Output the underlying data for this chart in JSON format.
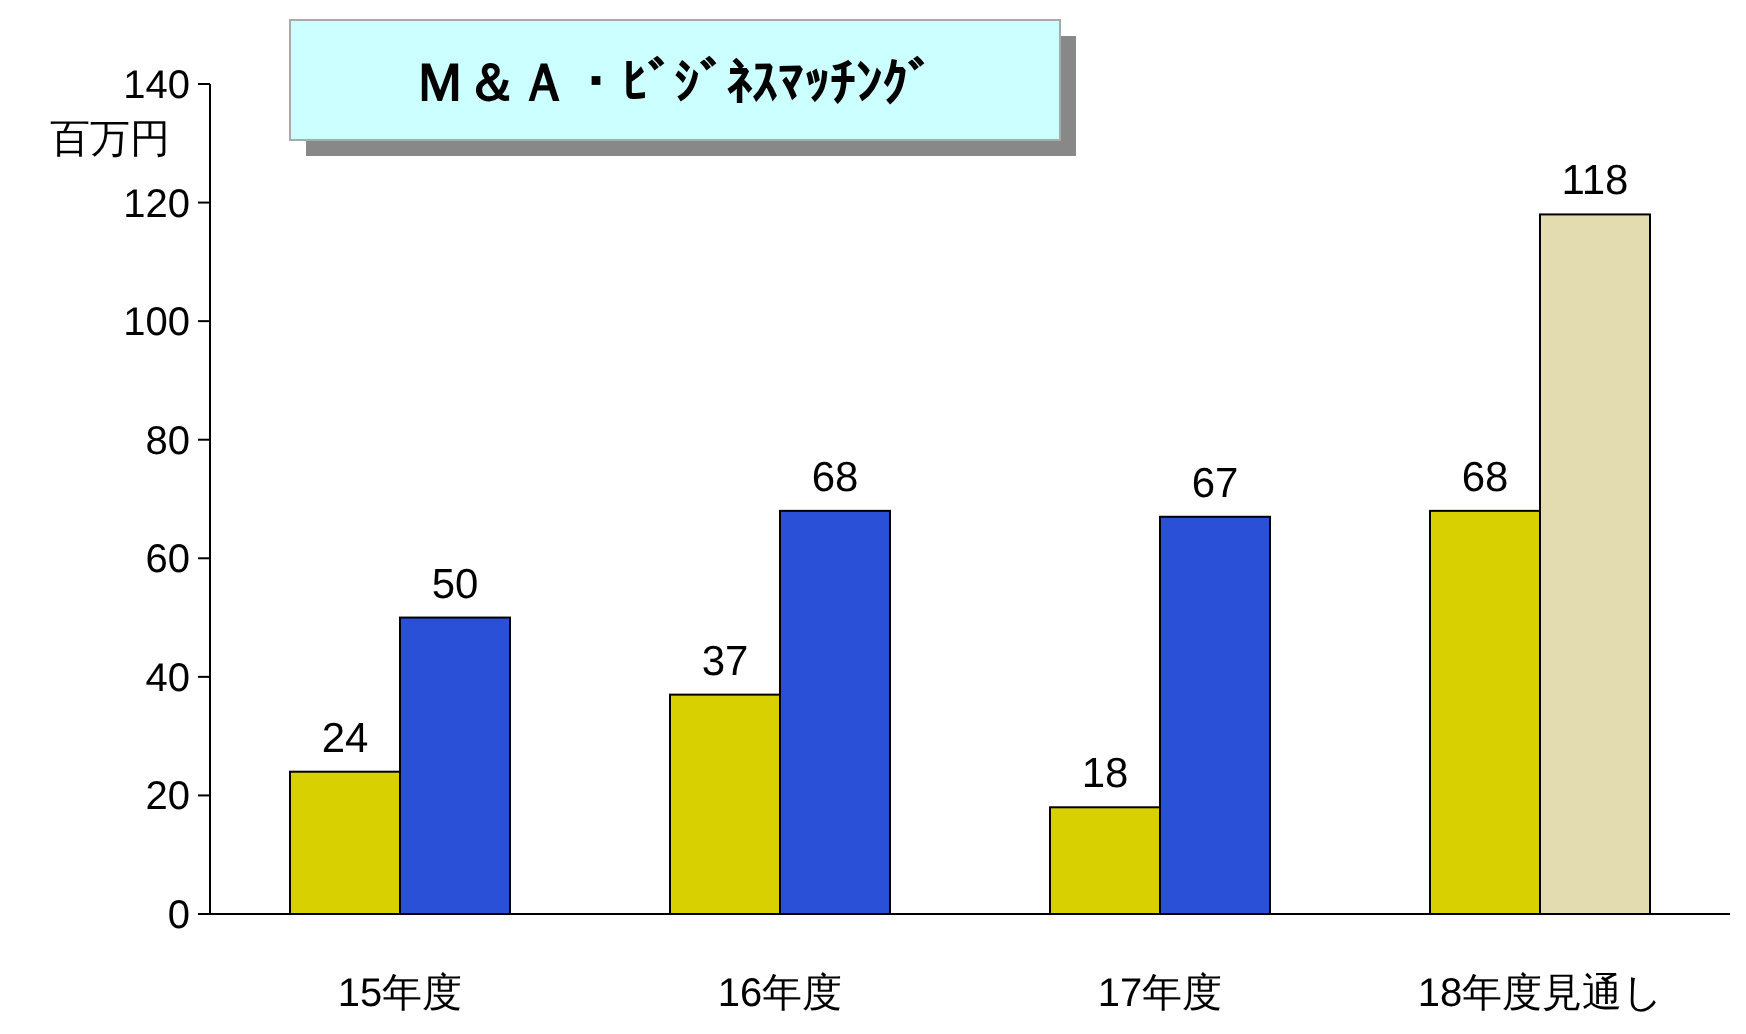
{
  "chart_data": {
    "type": "bar",
    "title": "Ｍ＆Ａ・ﾋﾞｼﾞﾈｽﾏｯﾁﾝｸﾞ",
    "ylabel": "百万円",
    "categories": [
      "15年度",
      "16年度",
      "17年度",
      "18年度見通し"
    ],
    "series": [
      {
        "color": "#d8d000",
        "values": [
          24,
          37,
          18,
          68
        ]
      },
      {
        "colors": [
          "#2a50d8",
          "#2a50d8",
          "#2a50d8",
          "#e2dcb0"
        ],
        "values": [
          50,
          68,
          67,
          118
        ]
      }
    ],
    "ylim": [
      0,
      140
    ],
    "yticks": [
      0,
      20,
      40,
      60,
      80,
      100,
      120,
      140
    ],
    "grid": false,
    "data_labels": true
  }
}
